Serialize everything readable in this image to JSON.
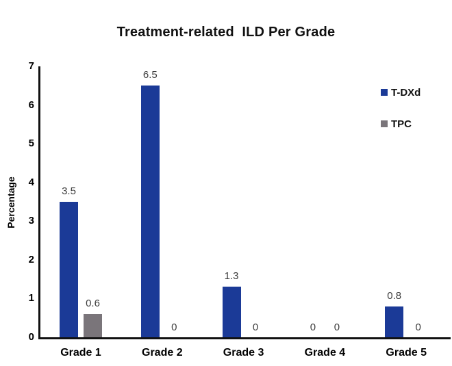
{
  "chart_data": {
    "type": "bar",
    "title": "Treatment-related  ILD Per Grade",
    "ylabel": "Percentage",
    "xlabel": "",
    "ylim": [
      0,
      7
    ],
    "yticks": [
      0,
      1,
      2,
      3,
      4,
      5,
      6,
      7
    ],
    "grid": false,
    "legend_position": "right-top",
    "categories": [
      "Grade 1",
      "Grade 2",
      "Grade 3",
      "Grade 4",
      "Grade 5"
    ],
    "series": [
      {
        "name": "T-DXd",
        "color": "#1B3A97",
        "values": [
          3.5,
          6.5,
          1.3,
          0,
          0.8
        ],
        "labels": [
          "3.5",
          "6.5",
          "1.3",
          "0",
          "0.8"
        ]
      },
      {
        "name": "TPC",
        "color": "#7A757A",
        "values": [
          0.6,
          0,
          0,
          0,
          0
        ],
        "labels": [
          "0.6",
          "0",
          "0",
          "0",
          "0"
        ]
      }
    ]
  }
}
